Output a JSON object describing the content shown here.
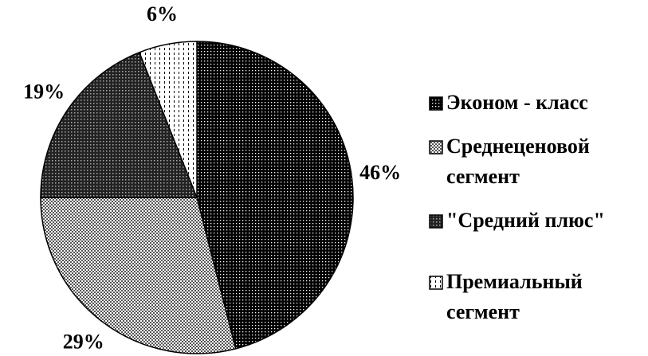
{
  "chart_data": {
    "type": "pie",
    "categories": [
      "Эконом - класс",
      "Среднеценовой сегмент",
      "\"Средний плюс\"",
      "Премиальный сегмент"
    ],
    "values": [
      46,
      29,
      19,
      6
    ],
    "value_labels": [
      "46%",
      "29%",
      "19%",
      "6%"
    ]
  }
}
